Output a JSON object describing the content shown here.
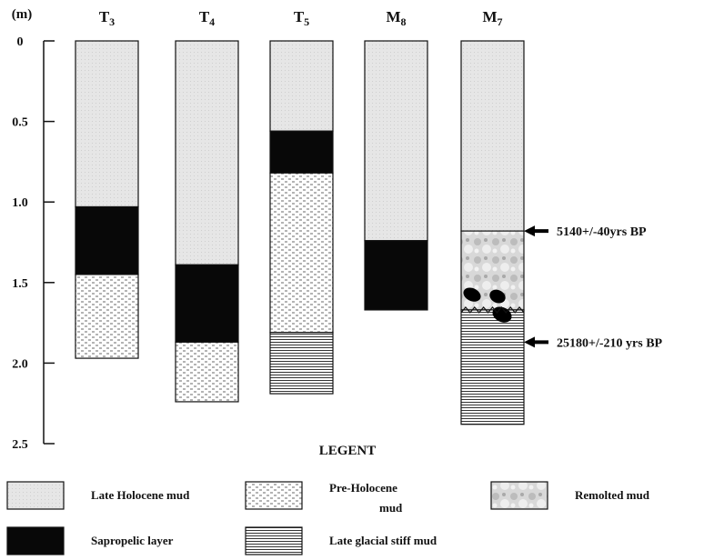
{
  "unit_label": "(m)",
  "ylim": [
    0,
    2.5
  ],
  "yticks": [
    0,
    0.5,
    {
      "value": 1,
      "label": "1.0"
    },
    1.5,
    {
      "value": 2,
      "label": "2.0"
    },
    2.5
  ],
  "cores": [
    {
      "name": "T",
      "sub": "3",
      "layers": [
        {
          "type": "holocene",
          "thickness": 1.03
        },
        {
          "type": "sapropel",
          "thickness": 0.42
        },
        {
          "type": "preholocene",
          "thickness": 0.52
        }
      ]
    },
    {
      "name": "T",
      "sub": "4",
      "layers": [
        {
          "type": "holocene",
          "thickness": 1.39
        },
        {
          "type": "sapropel",
          "thickness": 0.48
        },
        {
          "type": "preholocene",
          "thickness": 0.37
        }
      ]
    },
    {
      "name": "T",
      "sub": "5",
      "layers": [
        {
          "type": "holocene",
          "thickness": 0.56
        },
        {
          "type": "sapropel",
          "thickness": 0.26
        },
        {
          "type": "preholocene",
          "thickness": 0.99
        },
        {
          "type": "glacial",
          "thickness": 0.38
        }
      ]
    },
    {
      "name": "M",
      "sub": "8",
      "layers": [
        {
          "type": "holocene",
          "thickness": 1.24
        },
        {
          "type": "sapropel",
          "thickness": 0.43
        }
      ]
    },
    {
      "name": "M",
      "sub": "7",
      "layers": [
        {
          "type": "holocene",
          "thickness": 1.18
        },
        {
          "type": "remolted",
          "thickness": 0.49
        },
        {
          "type": "glacial",
          "thickness": 0.71
        }
      ]
    }
  ],
  "annotations": [
    {
      "text": "5140+/-40yrs BP",
      "depth": 1.18
    },
    {
      "text": "25180+/-210 yrs BP",
      "depth": 1.87
    }
  ],
  "legend": {
    "title": "LEGENT",
    "items": [
      {
        "type": "holocene",
        "lines": [
          "Late Holocene mud"
        ]
      },
      {
        "type": "preholocene",
        "lines": [
          "Pre-Holocene",
          "mud"
        ]
      },
      {
        "type": "remolted",
        "lines": [
          "Remolted mud"
        ]
      },
      {
        "type": "sapropel",
        "lines": [
          "Sapropelic layer"
        ]
      },
      {
        "type": "glacial",
        "lines": [
          "Late glacial stiff mud"
        ]
      }
    ]
  }
}
